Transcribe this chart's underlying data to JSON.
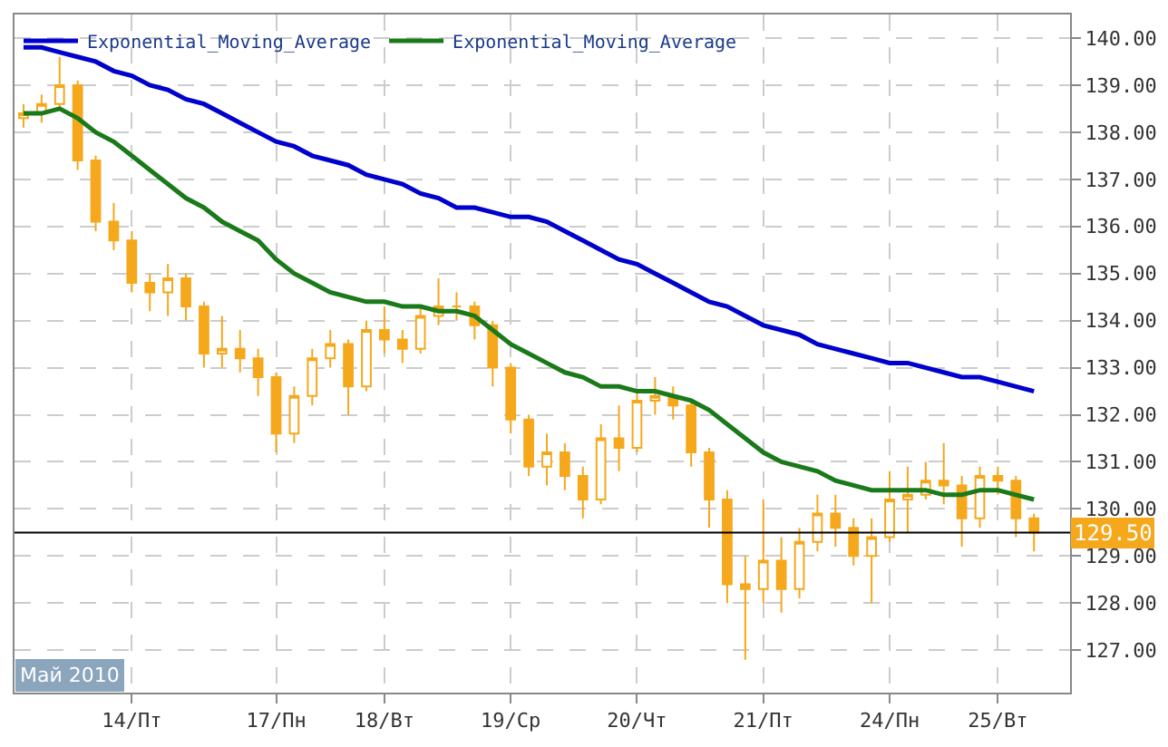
{
  "chart_data": {
    "type": "candlestick",
    "color": "#f5a81c",
    "categories": [
      null,
      null,
      null,
      null,
      null,
      null,
      "14/Пт",
      null,
      null,
      null,
      null,
      null,
      null,
      null,
      "17/Пн",
      null,
      null,
      null,
      null,
      null,
      "18/Вт",
      null,
      null,
      null,
      null,
      null,
      null,
      "19/Ср",
      null,
      null,
      null,
      null,
      null,
      null,
      "20/Чт",
      null,
      null,
      null,
      null,
      null,
      null,
      "21/Пт",
      null,
      null,
      null,
      null,
      null,
      null,
      "24/Пн",
      null,
      null,
      null,
      null,
      null,
      "25/Вт",
      null,
      null
    ],
    "ohlc": [
      [
        138.3,
        138.6,
        138.1,
        138.4
      ],
      [
        138.4,
        138.8,
        138.2,
        138.6
      ],
      [
        138.6,
        139.6,
        138.5,
        139.0
      ],
      [
        139.0,
        139.1,
        137.2,
        137.4
      ],
      [
        137.4,
        137.5,
        135.9,
        136.1
      ],
      [
        136.1,
        136.5,
        135.5,
        135.7
      ],
      [
        135.7,
        135.9,
        134.6,
        134.8
      ],
      [
        134.8,
        135.0,
        134.2,
        134.6
      ],
      [
        134.6,
        135.2,
        134.1,
        134.9
      ],
      [
        134.9,
        135.0,
        134.0,
        134.3
      ],
      [
        134.3,
        134.4,
        133.0,
        133.3
      ],
      [
        133.3,
        134.1,
        133.0,
        133.4
      ],
      [
        133.4,
        133.8,
        132.9,
        133.2
      ],
      [
        133.2,
        133.4,
        132.4,
        132.8
      ],
      [
        132.8,
        132.9,
        131.2,
        131.6
      ],
      [
        131.6,
        132.6,
        131.4,
        132.4
      ],
      [
        132.4,
        133.4,
        132.2,
        133.2
      ],
      [
        133.2,
        133.8,
        133.0,
        133.5
      ],
      [
        133.5,
        133.6,
        132.0,
        132.6
      ],
      [
        132.6,
        134.0,
        132.5,
        133.8
      ],
      [
        133.8,
        134.3,
        133.3,
        133.6
      ],
      [
        133.6,
        133.8,
        133.1,
        133.4
      ],
      [
        133.4,
        134.3,
        133.3,
        134.1
      ],
      [
        134.1,
        134.9,
        133.9,
        134.3
      ],
      [
        134.3,
        134.6,
        134.0,
        134.3
      ],
      [
        134.3,
        134.4,
        133.6,
        133.9
      ],
      [
        133.9,
        134.0,
        132.6,
        133.0
      ],
      [
        133.0,
        133.1,
        131.6,
        131.9
      ],
      [
        131.9,
        132.0,
        130.7,
        130.9
      ],
      [
        130.9,
        131.6,
        130.5,
        131.2
      ],
      [
        131.2,
        131.4,
        130.4,
        130.7
      ],
      [
        130.7,
        130.9,
        129.8,
        130.2
      ],
      [
        130.2,
        131.8,
        130.1,
        131.5
      ],
      [
        131.5,
        132.2,
        130.8,
        131.3
      ],
      [
        131.3,
        132.5,
        131.2,
        132.3
      ],
      [
        132.3,
        132.8,
        132.0,
        132.4
      ],
      [
        132.4,
        132.6,
        131.9,
        132.2
      ],
      [
        132.2,
        132.3,
        130.9,
        131.2
      ],
      [
        131.2,
        131.3,
        129.6,
        130.2
      ],
      [
        130.2,
        130.4,
        128.0,
        128.4
      ],
      [
        128.4,
        129.0,
        126.8,
        128.3
      ],
      [
        128.3,
        130.2,
        128.0,
        128.9
      ],
      [
        128.9,
        129.4,
        127.8,
        128.3
      ],
      [
        128.3,
        129.6,
        128.1,
        129.3
      ],
      [
        129.3,
        130.3,
        129.1,
        129.9
      ],
      [
        129.9,
        130.3,
        129.2,
        129.6
      ],
      [
        129.6,
        129.8,
        128.8,
        129.0
      ],
      [
        129.0,
        129.8,
        128.0,
        129.4
      ],
      [
        129.4,
        130.8,
        129.3,
        130.2
      ],
      [
        130.2,
        130.9,
        129.5,
        130.3
      ],
      [
        130.3,
        131.0,
        130.2,
        130.6
      ],
      [
        130.6,
        131.4,
        130.1,
        130.5
      ],
      [
        130.5,
        130.7,
        129.2,
        129.8
      ],
      [
        129.8,
        130.9,
        129.6,
        130.7
      ],
      [
        130.7,
        130.9,
        130.3,
        130.6
      ],
      [
        130.6,
        130.7,
        129.4,
        129.8
      ],
      [
        129.8,
        129.9,
        129.1,
        129.5
      ]
    ],
    "series": [
      {
        "type": "line",
        "name": "Exponential_Moving_Average",
        "color": "#0000cc",
        "values": [
          139.8,
          139.8,
          139.7,
          139.6,
          139.5,
          139.3,
          139.2,
          139.0,
          138.9,
          138.7,
          138.6,
          138.4,
          138.2,
          138.0,
          137.8,
          137.7,
          137.5,
          137.4,
          137.3,
          137.1,
          137.0,
          136.9,
          136.7,
          136.6,
          136.4,
          136.4,
          136.3,
          136.2,
          136.2,
          136.1,
          135.9,
          135.7,
          135.5,
          135.3,
          135.2,
          135.0,
          134.8,
          134.6,
          134.4,
          134.3,
          134.1,
          133.9,
          133.8,
          133.7,
          133.5,
          133.4,
          133.3,
          133.2,
          133.1,
          133.1,
          133.0,
          132.9,
          132.8,
          132.8,
          132.7,
          132.6,
          132.5
        ]
      },
      {
        "type": "line",
        "name": "Exponential_Moving_Average",
        "color": "#1a7a1a",
        "values": [
          138.4,
          138.4,
          138.5,
          138.3,
          138.0,
          137.8,
          137.5,
          137.2,
          136.9,
          136.6,
          136.4,
          136.1,
          135.9,
          135.7,
          135.3,
          135.0,
          134.8,
          134.6,
          134.5,
          134.4,
          134.4,
          134.3,
          134.3,
          134.2,
          134.2,
          134.1,
          133.8,
          133.5,
          133.3,
          133.1,
          132.9,
          132.8,
          132.6,
          132.6,
          132.5,
          132.5,
          132.4,
          132.3,
          132.1,
          131.8,
          131.5,
          131.2,
          131.0,
          130.9,
          130.8,
          130.6,
          130.5,
          130.4,
          130.4,
          130.4,
          130.4,
          130.3,
          130.3,
          130.4,
          130.4,
          130.3,
          130.2
        ]
      }
    ],
    "ylim": [
      126.1,
      140.5
    ],
    "yticks": [
      {
        "value": 127,
        "label": "127.00"
      },
      {
        "value": 128,
        "label": "128.00"
      },
      {
        "value": 129,
        "label": "129.00"
      },
      {
        "value": 130,
        "label": "130.00"
      },
      {
        "value": 131,
        "label": "131.00"
      },
      {
        "value": 132,
        "label": "132.00"
      },
      {
        "value": 133,
        "label": "133.00"
      },
      {
        "value": 134,
        "label": "134.00"
      },
      {
        "value": 135,
        "label": "135.00"
      },
      {
        "value": 136,
        "label": "136.00"
      },
      {
        "value": 137,
        "label": "137.00"
      },
      {
        "value": 138,
        "label": "138.00"
      },
      {
        "value": 139,
        "label": "139.00"
      },
      {
        "value": 140,
        "label": "140.00"
      }
    ],
    "ref_lines": [
      {
        "axis": "y",
        "value": 129.5,
        "label": "129.50",
        "color": "#000000"
      }
    ],
    "annotations": [
      "Май 2010"
    ],
    "grid": true,
    "legend": "top left"
  }
}
